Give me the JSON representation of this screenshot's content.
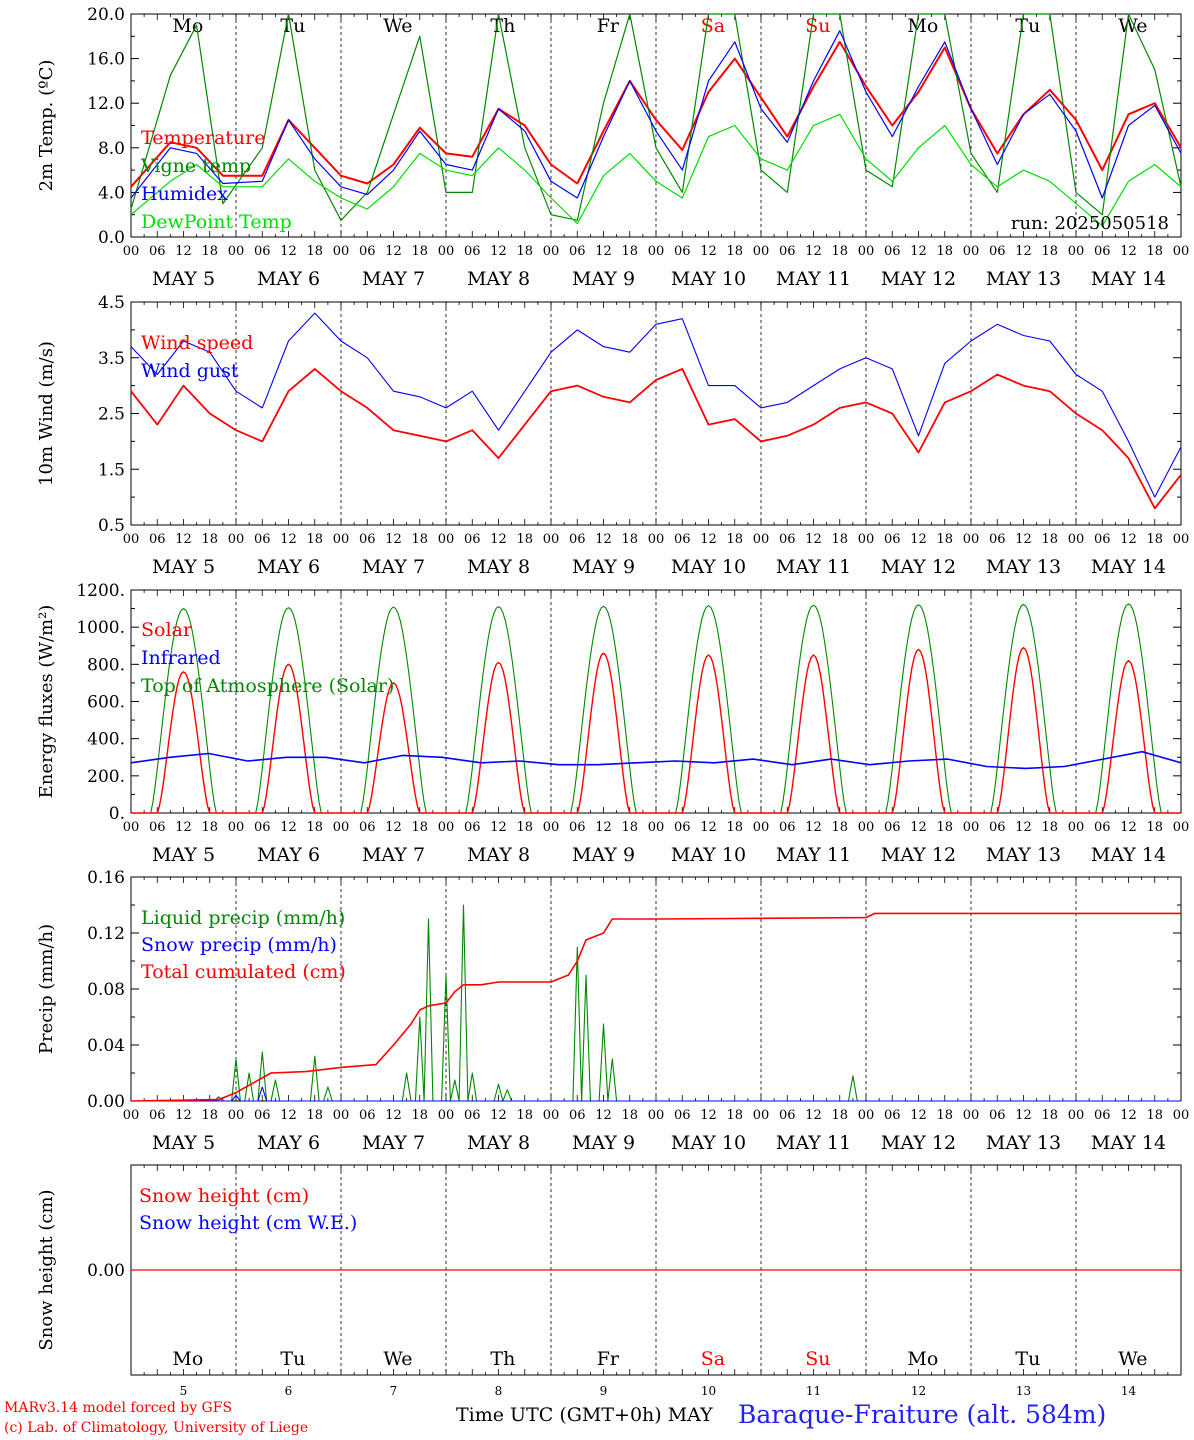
{
  "chart_data": [
    {
      "type": "line",
      "ylabel": "2m Temp. (ºC)",
      "ylim": [
        0,
        20
      ],
      "yticks": [
        "0.0",
        "4.0",
        "8.0",
        "12.0",
        "16.0",
        "20.0"
      ],
      "run_label": "run: 2025050518",
      "day_names": [
        "Mo",
        "Tu",
        "We",
        "Th",
        "Fr",
        "Sa",
        "Su",
        "Mo",
        "Tu",
        "We"
      ],
      "day_colors": [
        "#000000",
        "#000000",
        "#000000",
        "#000000",
        "#000000",
        "#ff0000",
        "#ff0000",
        "#000000",
        "#000000",
        "#000000"
      ],
      "x_hours": [
        0,
        9,
        15,
        21,
        30,
        36,
        42,
        48,
        54,
        60,
        66,
        72,
        78,
        84,
        90,
        96,
        102,
        108,
        114,
        120,
        126,
        132,
        138,
        144,
        150,
        156,
        162,
        168,
        174,
        180,
        186,
        192,
        198,
        204,
        210,
        216,
        222,
        228,
        234,
        240
      ],
      "series": [
        {
          "name": "Temperature",
          "color": "#ff0000",
          "values": [
            4.5,
            8.5,
            8.0,
            5.5,
            5.5,
            10.5,
            8.0,
            5.5,
            4.8,
            6.5,
            9.8,
            7.5,
            7.2,
            11.5,
            10.0,
            6.5,
            4.8,
            9.5,
            14.0,
            10.5,
            7.8,
            13.0,
            16.0,
            12.5,
            9.0,
            13.5,
            17.5,
            13.5,
            10.0,
            13.0,
            17.0,
            11.5,
            7.5,
            11.0,
            13.2,
            10.5,
            6.0,
            11.0,
            12.0,
            8.0
          ]
        },
        {
          "name": "Vigne temp",
          "color": "#008800",
          "values": [
            2.5,
            14.5,
            19.0,
            3.0,
            8.0,
            20.0,
            6.0,
            1.5,
            4.0,
            11.0,
            18.0,
            4.0,
            4.0,
            20.0,
            8.0,
            2.0,
            1.5,
            12.0,
            20.0,
            8.0,
            4.0,
            20.0,
            20.0,
            6.0,
            4.0,
            20.0,
            20.0,
            6.0,
            4.5,
            20.0,
            20.0,
            7.5,
            4.0,
            20.0,
            20.0,
            4.0,
            2.0,
            20.0,
            15.0,
            4.5
          ]
        },
        {
          "name": "Humidex",
          "color": "#0000ff",
          "values": [
            3.5,
            8.0,
            7.5,
            4.8,
            5.0,
            10.5,
            7.0,
            4.5,
            3.8,
            6.0,
            9.5,
            6.5,
            6.0,
            11.5,
            9.5,
            5.0,
            3.5,
            9.0,
            14.0,
            9.5,
            6.0,
            14.0,
            17.5,
            11.5,
            8.5,
            14.0,
            18.5,
            13.0,
            9.0,
            13.5,
            17.5,
            11.5,
            6.5,
            11.0,
            12.8,
            9.5,
            3.5,
            10.0,
            11.8,
            7.5
          ]
        },
        {
          "name": "DewPoint Temp",
          "color": "#00dd00",
          "values": [
            2.0,
            5.0,
            6.5,
            4.5,
            4.5,
            7.0,
            5.0,
            3.5,
            2.5,
            4.5,
            7.5,
            6.0,
            5.5,
            8.0,
            6.0,
            3.5,
            1.2,
            5.5,
            7.5,
            5.0,
            3.5,
            9.0,
            10.0,
            7.0,
            6.0,
            10.0,
            11.0,
            7.0,
            5.0,
            8.0,
            10.0,
            6.5,
            4.5,
            6.0,
            5.0,
            3.0,
            1.0,
            5.0,
            6.5,
            4.5
          ]
        }
      ]
    },
    {
      "type": "line",
      "ylabel": "10m Wind (m/s)",
      "ylim": [
        0.5,
        4.5
      ],
      "yticks": [
        "0.5",
        "1.5",
        "2.5",
        "3.5",
        "4.5"
      ],
      "x_hours": [
        0,
        6,
        12,
        18,
        24,
        30,
        36,
        42,
        48,
        54,
        60,
        66,
        72,
        78,
        84,
        90,
        96,
        102,
        108,
        114,
        120,
        126,
        132,
        138,
        144,
        150,
        156,
        162,
        168,
        174,
        180,
        186,
        192,
        198,
        204,
        210,
        216,
        222,
        228,
        234,
        240
      ],
      "series": [
        {
          "name": "Wind speed",
          "color": "#ff0000",
          "values": [
            2.9,
            2.3,
            3.0,
            2.5,
            2.2,
            2.0,
            2.9,
            3.3,
            2.9,
            2.6,
            2.2,
            2.1,
            2.0,
            2.2,
            1.7,
            2.3,
            2.9,
            3.0,
            2.8,
            2.7,
            3.1,
            3.3,
            2.3,
            2.4,
            2.0,
            2.1,
            2.3,
            2.6,
            2.7,
            2.5,
            1.8,
            2.7,
            2.9,
            3.2,
            3.0,
            2.9,
            2.5,
            2.2,
            1.7,
            0.8,
            1.4
          ]
        },
        {
          "name": "Wind gust",
          "color": "#0000ff",
          "values": [
            3.7,
            3.2,
            3.8,
            3.6,
            2.9,
            2.6,
            3.8,
            4.3,
            3.8,
            3.5,
            2.9,
            2.8,
            2.6,
            2.9,
            2.2,
            2.9,
            3.6,
            4.0,
            3.7,
            3.6,
            4.1,
            4.2,
            3.0,
            3.0,
            2.6,
            2.7,
            3.0,
            3.3,
            3.5,
            3.3,
            2.1,
            3.4,
            3.8,
            4.1,
            3.9,
            3.8,
            3.2,
            2.9,
            2.0,
            1.0,
            1.9
          ]
        }
      ]
    },
    {
      "type": "line",
      "ylabel": "Energy fluxes (W/m²)",
      "ylim": [
        0,
        1200
      ],
      "yticks": [
        "0.",
        "200.",
        "400.",
        "600.",
        "800.",
        "1000.",
        "1200."
      ],
      "series": [
        {
          "name": "Solar",
          "color": "#ff0000",
          "daily_peak": [
            760,
            800,
            700,
            810,
            860,
            850,
            850,
            880,
            890,
            820
          ]
        },
        {
          "name": "Infrared",
          "color": "#0000ff",
          "values": [
            270,
            300,
            320,
            280,
            300,
            300,
            270,
            310,
            300,
            270,
            280,
            260,
            260,
            270,
            280,
            270,
            290,
            260,
            290,
            260,
            280,
            290,
            250,
            240,
            250,
            290,
            330,
            270
          ]
        },
        {
          "name": "Top of Atmosphere (Solar)",
          "color": "#008800",
          "daily_peak": [
            1100,
            1105,
            1108,
            1110,
            1112,
            1115,
            1118,
            1120,
            1122,
            1125
          ]
        }
      ]
    },
    {
      "type": "line",
      "ylabel": "Precip (mm/h)",
      "ylim": [
        0,
        0.16
      ],
      "yticks": [
        "0.00",
        "0.04",
        "0.08",
        "0.12",
        "0.16"
      ],
      "series": [
        {
          "name": "Liquid precip (mm/h)",
          "color": "#008800",
          "spikes": [
            [
              20,
              0.003
            ],
            [
              24,
              0.03
            ],
            [
              27,
              0.02
            ],
            [
              30,
              0.035
            ],
            [
              33,
              0.015
            ],
            [
              42,
              0.032
            ],
            [
              45,
              0.01
            ],
            [
              63,
              0.02
            ],
            [
              66,
              0.06
            ],
            [
              68,
              0.13
            ],
            [
              72,
              0.09
            ],
            [
              74,
              0.015
            ],
            [
              76,
              0.14
            ],
            [
              78,
              0.02
            ],
            [
              84,
              0.012
            ],
            [
              86,
              0.008
            ],
            [
              102,
              0.11
            ],
            [
              104,
              0.09
            ],
            [
              108,
              0.055
            ],
            [
              110,
              0.03
            ],
            [
              165,
              0.018
            ]
          ]
        },
        {
          "name": "Snow precip (mm/h)",
          "color": "#0000ff",
          "spikes": [
            [
              24,
              0.004
            ],
            [
              30,
              0.01
            ]
          ]
        },
        {
          "name": "Total cumulated (cm)",
          "color": "#ff0000",
          "x_hours": [
            0,
            20,
            24,
            28,
            32,
            40,
            48,
            56,
            60,
            64,
            66,
            68,
            72,
            74,
            76,
            80,
            84,
            96,
            100,
            102,
            104,
            108,
            110,
            120,
            168,
            170,
            240
          ],
          "values": [
            0.0,
            0.001,
            0.006,
            0.013,
            0.02,
            0.021,
            0.024,
            0.026,
            0.04,
            0.055,
            0.065,
            0.068,
            0.07,
            0.078,
            0.083,
            0.083,
            0.085,
            0.085,
            0.09,
            0.1,
            0.115,
            0.12,
            0.13,
            0.13,
            0.131,
            0.134,
            0.134
          ]
        }
      ]
    },
    {
      "type": "line",
      "ylabel": "Snow height (cm)",
      "yticks": [
        "0.00"
      ],
      "day_names": [
        "Mo",
        "Tu",
        "We",
        "Th",
        "Fr",
        "Sa",
        "Su",
        "Mo",
        "Tu",
        "We"
      ],
      "day_numbers": [
        "5",
        "6",
        "7",
        "8",
        "9",
        "10",
        "11",
        "12",
        "13",
        "14"
      ],
      "series": [
        {
          "name": "Snow height (cm)",
          "color": "#ff0000",
          "values": [
            0.0,
            0.0
          ]
        },
        {
          "name": "Snow height (cm W.E.)",
          "color": "#0000ff",
          "values": [
            0.0,
            0.0
          ]
        }
      ]
    }
  ],
  "x_axis": {
    "hour_labels": [
      "00",
      "06",
      "12",
      "18"
    ],
    "date_labels": [
      "MAY  5",
      "MAY  6",
      "MAY  7",
      "MAY  8",
      "MAY  9",
      "MAY 10",
      "MAY 11",
      "MAY 12",
      "MAY 13",
      "MAY 14"
    ],
    "final_hour_label": "00"
  },
  "footer": {
    "credit_line1": "MARv3.14 model forced by GFS",
    "credit_line2": "(c) Lab. of Climatology, University of Liege",
    "axis_title": "Time UTC (GMT+0h) MAY",
    "station": "Baraque-Fraiture (alt. 584m)"
  }
}
